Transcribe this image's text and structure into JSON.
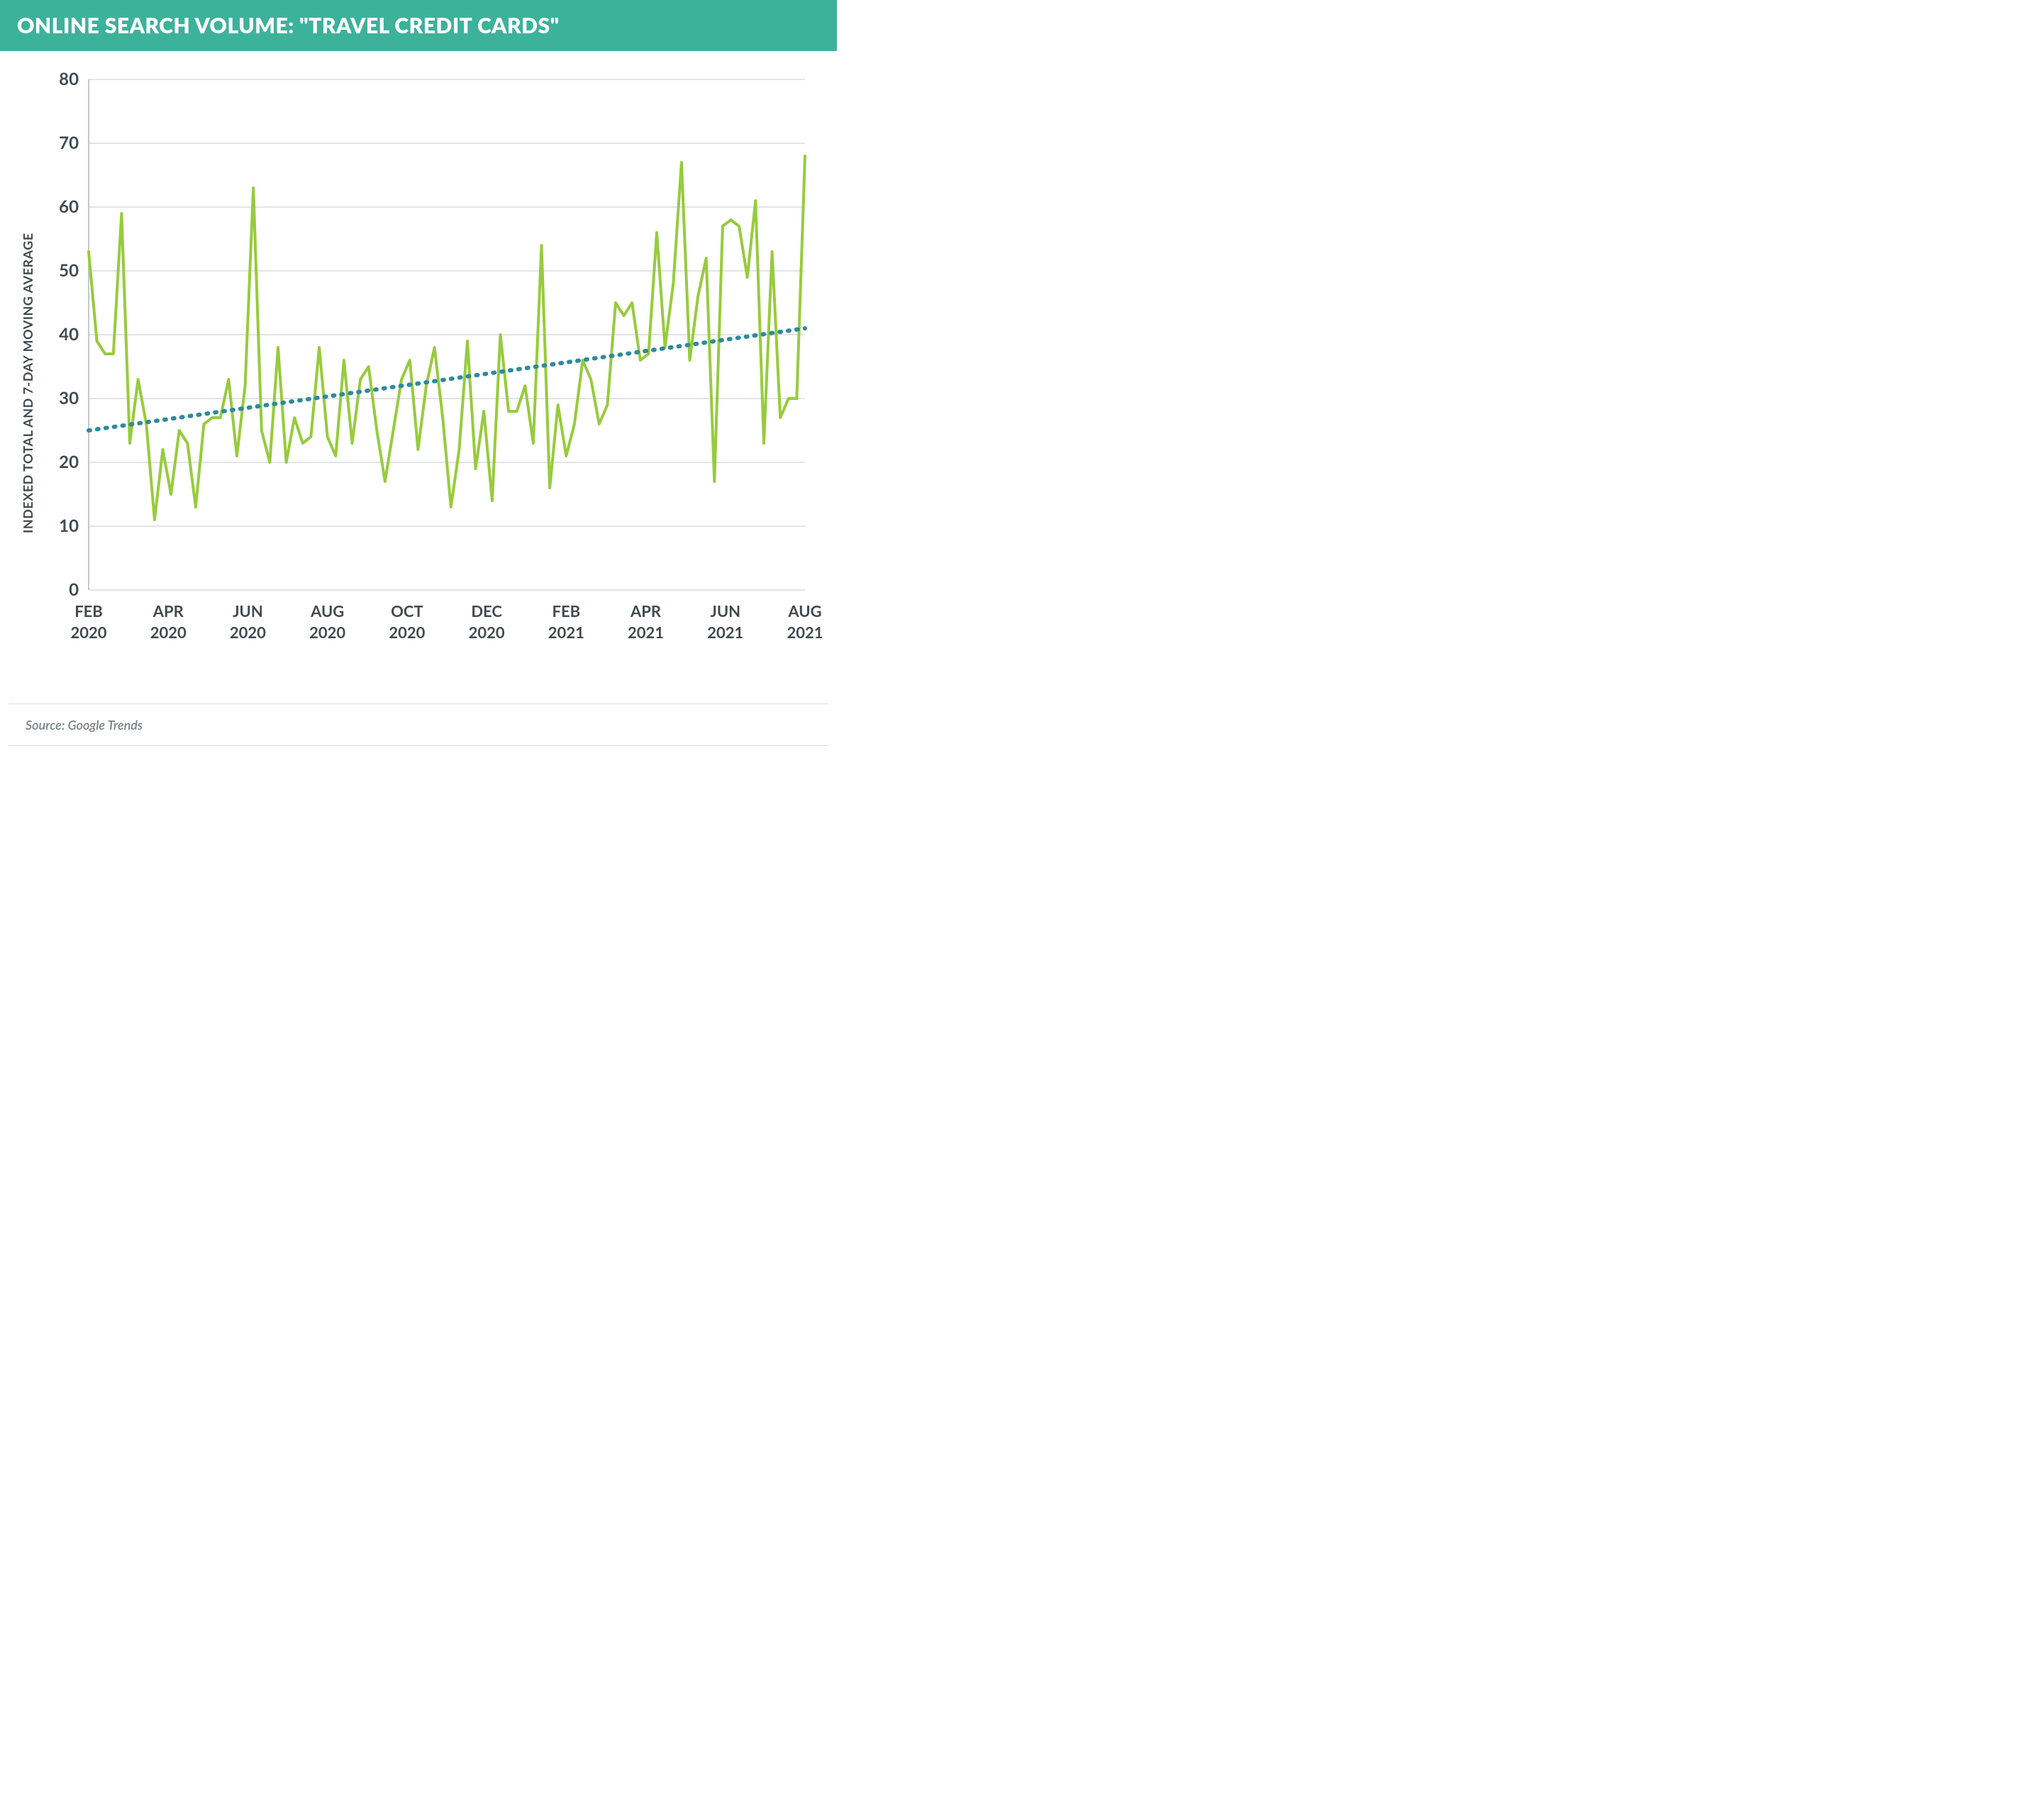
{
  "header": {
    "title": "ONLINE SEARCH VOLUME: \"TRAVEL CREDIT CARDS\"",
    "bg_color": "#3cb29a",
    "text_color": "#ffffff"
  },
  "chart": {
    "type": "line",
    "y_axis_label": "INDEXED TOTAL AND 7-DAY MOVING AVERAGE",
    "ylim": [
      0,
      80
    ],
    "ytick_step": 10,
    "yticks": [
      0,
      10,
      20,
      30,
      40,
      50,
      60,
      70,
      80
    ],
    "xlabels": [
      "FEB 2020",
      "APR 2020",
      "JUN 2020",
      "AUG 2020",
      "OCT 2020",
      "DEC 2020",
      "FEB 2021",
      "APR 2021",
      "JUN 2021",
      "AUG 2021"
    ],
    "background_color": "#ffffff",
    "grid_color": "#d9dcde",
    "axis_color": "#c5c9cb",
    "tick_font_color": "#404a4f",
    "tick_fontsize": 24,
    "series": {
      "data": {
        "color": "#97cb3d",
        "line_width": 4,
        "values": [
          53,
          39,
          37,
          37,
          59,
          23,
          33,
          26,
          11,
          22,
          15,
          25,
          23,
          13,
          26,
          27,
          27,
          33,
          21,
          32,
          63,
          25,
          20,
          38,
          20,
          27,
          23,
          24,
          38,
          24,
          21,
          36,
          23,
          33,
          35,
          25,
          17,
          25,
          33,
          36,
          22,
          32,
          38,
          27,
          13,
          22,
          39,
          19,
          28,
          14,
          40,
          28,
          28,
          32,
          23,
          54,
          16,
          29,
          21,
          26,
          36,
          33,
          26,
          29,
          45,
          43,
          45,
          36,
          37,
          56,
          38,
          48,
          67,
          36,
          46,
          52,
          17,
          57,
          58,
          57,
          49,
          61,
          23,
          53,
          27,
          30,
          30,
          68
        ],
        "count": 88
      },
      "trend": {
        "color": "#2f8a9c",
        "dash": "2,10",
        "line_width": 6,
        "start_y": 25,
        "end_y": 41
      }
    }
  },
  "footer": {
    "source_text": "Source: Google Trends"
  }
}
